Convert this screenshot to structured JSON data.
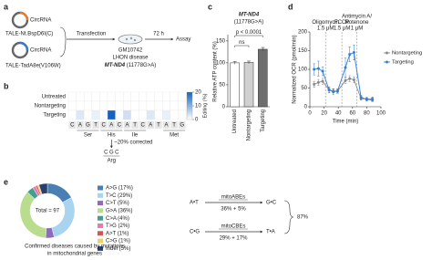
{
  "panel_a": {
    "label": "a",
    "circ_top": "CircRNA",
    "tale_top": "TALE-Nt.BspD6I(C)",
    "circ_bottom": "CircRNA",
    "tale_bottom": "TALE-TadA8e(V106W)",
    "transfection": "Transfection",
    "cell_line": "GM10742",
    "disease": "LHON disease",
    "gene": "MT-ND4",
    "mutation": "(11778G>A)",
    "duration": "72 h",
    "assay": "Assay"
  },
  "chart_data": [
    {
      "type": "heatmap",
      "panel_label": "b",
      "rows": [
        "Untreated",
        "Nontargeting",
        "Targeting"
      ],
      "columns": [
        "C",
        "A",
        "G",
        "T",
        "C",
        "A",
        "C",
        "A",
        "T",
        "C",
        "A",
        "T",
        "A",
        "T",
        "G"
      ],
      "amino_acids": [
        null,
        null,
        "Ser",
        null,
        null,
        "His",
        null,
        null,
        "Ile",
        null,
        null,
        null,
        null,
        "Met",
        null
      ],
      "values": [
        [
          0,
          0,
          0,
          0,
          0,
          0,
          0,
          0,
          0,
          0,
          0,
          0,
          0,
          0,
          0
        ],
        [
          0,
          0,
          0,
          0,
          0,
          0,
          0,
          0,
          0,
          0,
          0,
          0,
          0,
          0,
          0
        ],
        [
          0,
          3,
          0,
          2,
          0,
          20,
          0,
          4,
          0,
          0,
          3,
          0,
          2,
          0,
          0
        ]
      ],
      "clim": [
        0,
        20
      ],
      "colorbar_ticks": [
        0,
        10,
        20
      ],
      "colorbar_label": "Editing (%)",
      "color_low": "#ffffff",
      "color_high": "#1565c0",
      "annotation": "~20% corrected",
      "edited_codon": [
        "C",
        "G",
        "C"
      ],
      "edited_amino_acid": "Arg"
    },
    {
      "type": "bar",
      "panel_label": "c",
      "title": "MT-ND4",
      "subtitle": "(11778G>A)",
      "ylabel": "Relative ATP content (%)",
      "categories": [
        "Untreated",
        "Nontargeting",
        "Targeting"
      ],
      "values": [
        100,
        101,
        131
      ],
      "errors": [
        3,
        3,
        4
      ],
      "colors": [
        "#ffffff",
        "#d0d0d0",
        "#6e6e6e"
      ],
      "ylim": [
        0,
        160
      ],
      "yticks": [
        0,
        50,
        100,
        150
      ],
      "significance": [
        "ns",
        "p < 0.0001"
      ]
    },
    {
      "type": "line",
      "panel_label": "d",
      "xlabel": "Time (min)",
      "ylabel": "Normalized OCR (pmol/min)",
      "x": [
        6,
        12,
        18,
        27,
        33,
        39,
        50,
        56,
        62,
        72,
        80,
        88
      ],
      "xlim": [
        0,
        100
      ],
      "xticks": [
        0,
        20,
        40,
        60,
        80,
        100
      ],
      "ylim": [
        0,
        200
      ],
      "yticks": [
        0,
        50,
        100,
        150,
        200
      ],
      "series": [
        {
          "name": "Nontargeting",
          "color": "#8a8a8a",
          "values": [
            60,
            65,
            68,
            45,
            42,
            42,
            70,
            75,
            72,
            22,
            20,
            22
          ],
          "errors": [
            8,
            8,
            8,
            6,
            5,
            5,
            8,
            8,
            8,
            4,
            4,
            4
          ]
        },
        {
          "name": "Targeting",
          "color": "#2f7fd6",
          "values": [
            100,
            102,
            95,
            45,
            40,
            42,
            105,
            140,
            145,
            25,
            20,
            18
          ],
          "errors": [
            15,
            20,
            12,
            8,
            8,
            6,
            25,
            20,
            20,
            6,
            5,
            4
          ]
        }
      ],
      "injections": [
        {
          "x": 22,
          "lines": [
            "Oligomycin",
            "1.5 μM"
          ]
        },
        {
          "x": 45,
          "lines": [
            "FCCP",
            "1.5 μM"
          ]
        },
        {
          "x": 66,
          "lines": [
            "Antimycin A/",
            "Rotenone",
            "1 μM"
          ]
        }
      ],
      "legend": "right"
    },
    {
      "type": "pie",
      "panel_label": "e",
      "donut": true,
      "center_text": "Total = 97",
      "caption": [
        "Confirmed diseases caused by mutations",
        "in mitochondrial genes"
      ],
      "categories": [
        "A>G (17%)",
        "T>C (29%)",
        "C>T (5%)",
        "G>A (36%)",
        "C>A (4%)",
        "T>G (2%)",
        "A>T (1%)",
        "C>G (1%)",
        "Indel (5%)"
      ],
      "values": [
        17,
        29,
        5,
        36,
        4,
        2,
        1,
        1,
        5
      ],
      "colors": [
        "#4a7fb5",
        "#a9d4ef",
        "#8e6bb8",
        "#b9dc8e",
        "#3fa08f",
        "#e879b8",
        "#d9534f",
        "#e8d36a",
        "#2b3f6b"
      ]
    }
  ],
  "panel_e_scheme": {
    "row1": {
      "from": "A•T",
      "editor": "mitoABEs",
      "share": "36% + 5%",
      "to": "G•C"
    },
    "row2": {
      "from": "C•G",
      "editor": "mitoCBEs",
      "share": "29% + 17%",
      "to": "T•A"
    },
    "total": "87%"
  }
}
